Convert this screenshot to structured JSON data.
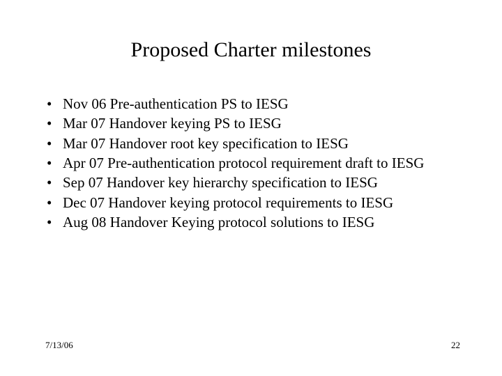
{
  "title": "Proposed Charter milestones",
  "bullets": [
    "Nov 06 Pre-authentication PS to IESG",
    "Mar 07  Handover keying PS to IESG",
    "Mar 07 Handover root key specification to IESG",
    "Apr 07 Pre-authentication protocol requirement draft to IESG",
    "Sep 07  Handover key hierarchy specification to IESG",
    "Dec 07 Handover keying protocol requirements to IESG",
    "Aug 08 Handover Keying protocol solutions to IESG"
  ],
  "footer": {
    "date": "7/13/06",
    "page": "22"
  }
}
